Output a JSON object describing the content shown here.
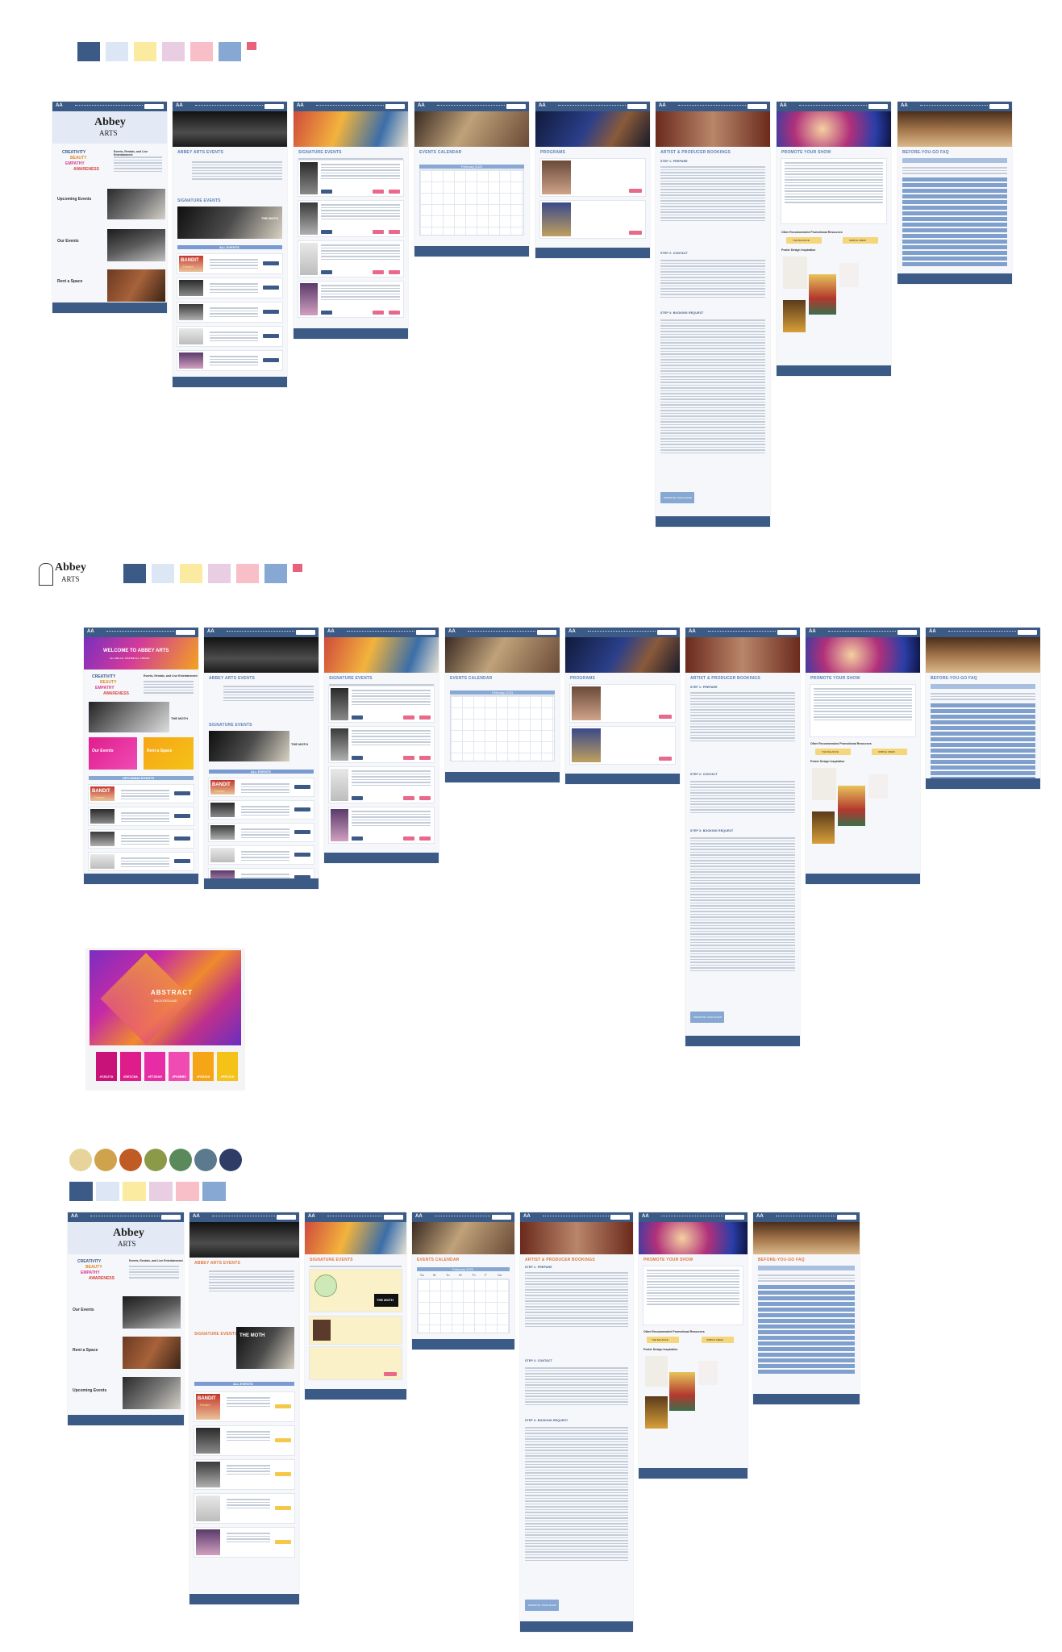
{
  "site": {
    "nav_logo": "AA",
    "logo_line1": "Abbey",
    "logo_line2": "ARTS",
    "tagline": "Events, Rentals, and Live Entertainment",
    "values": [
      "CREATIVITY",
      "BEAUTY",
      "EMPATHY",
      "AWARENESS"
    ],
    "welcome": "WELCOME TO ABBEY ARTS",
    "welcome_sub": "ALL ARE ALL INSPIRE ALL CREATE"
  },
  "page_titles": {
    "abbey_arts_events": "ABBEY ARTS EVENTS",
    "signature_events": "SIGNATURE EVENTS",
    "events_calendar": "EVENTS CALENDAR",
    "programs": "PROGRAMS",
    "artist_producer_bookings": "ARTIST & PRODUCER BOOKINGS",
    "promote_your_show": "PROMOTE YOUR SHOW",
    "before_you_go_faq": "BEFORE-YOU-GO FAQ",
    "all_events": "ALL EVENTS",
    "upcoming_events_caps": "UPCOMING EVENTS"
  },
  "home_sections": {
    "upcoming_events": "Upcoming Events",
    "our_events": "Our Events",
    "rent_a_space": "Rent a Space"
  },
  "calendar": {
    "month": "February 2023",
    "weekdays": [
      "Su",
      "M",
      "Tu",
      "W",
      "Th",
      "F",
      "Sa"
    ]
  },
  "bookings": {
    "step1": "STEP 1: PREPARE",
    "step2": "STEP 2: CONTACT",
    "step3": "STEP 3: BOOKING REQUEST",
    "submit_button": "PROMOTE YOUR SHOW"
  },
  "promote": {
    "resources": "Other Recommended Promotional Resources",
    "button_a": "THE BALANCE",
    "button_b": "SIMPLE CREW",
    "poster_heading": "Poster Design Inspiration"
  },
  "event_cards": {
    "the_moth": "THE MOTH",
    "bandit": "BANDIT",
    "bandit_sub": "Theatre"
  },
  "abstract_card": {
    "title": "ABSTRACT",
    "subtitle": "BACKGROUND"
  },
  "abstract_palette": [
    "#C8127A",
    "#DE1C8A",
    "#E72DA5",
    "#F04BB3",
    "#F6A516",
    "#F5C218"
  ],
  "brand_palette": [
    "#3B5A85",
    "#DDE6F4",
    "#FBEBA1",
    "#E9CDE3",
    "#F8BFC8",
    "#86A8D3",
    "#E8627C"
  ],
  "earth_palette": [
    "#E7D49A",
    "#CFA34B",
    "#C05B23",
    "#8A9A48",
    "#5A8A5C",
    "#5B7A8E",
    "#2E3D66"
  ]
}
